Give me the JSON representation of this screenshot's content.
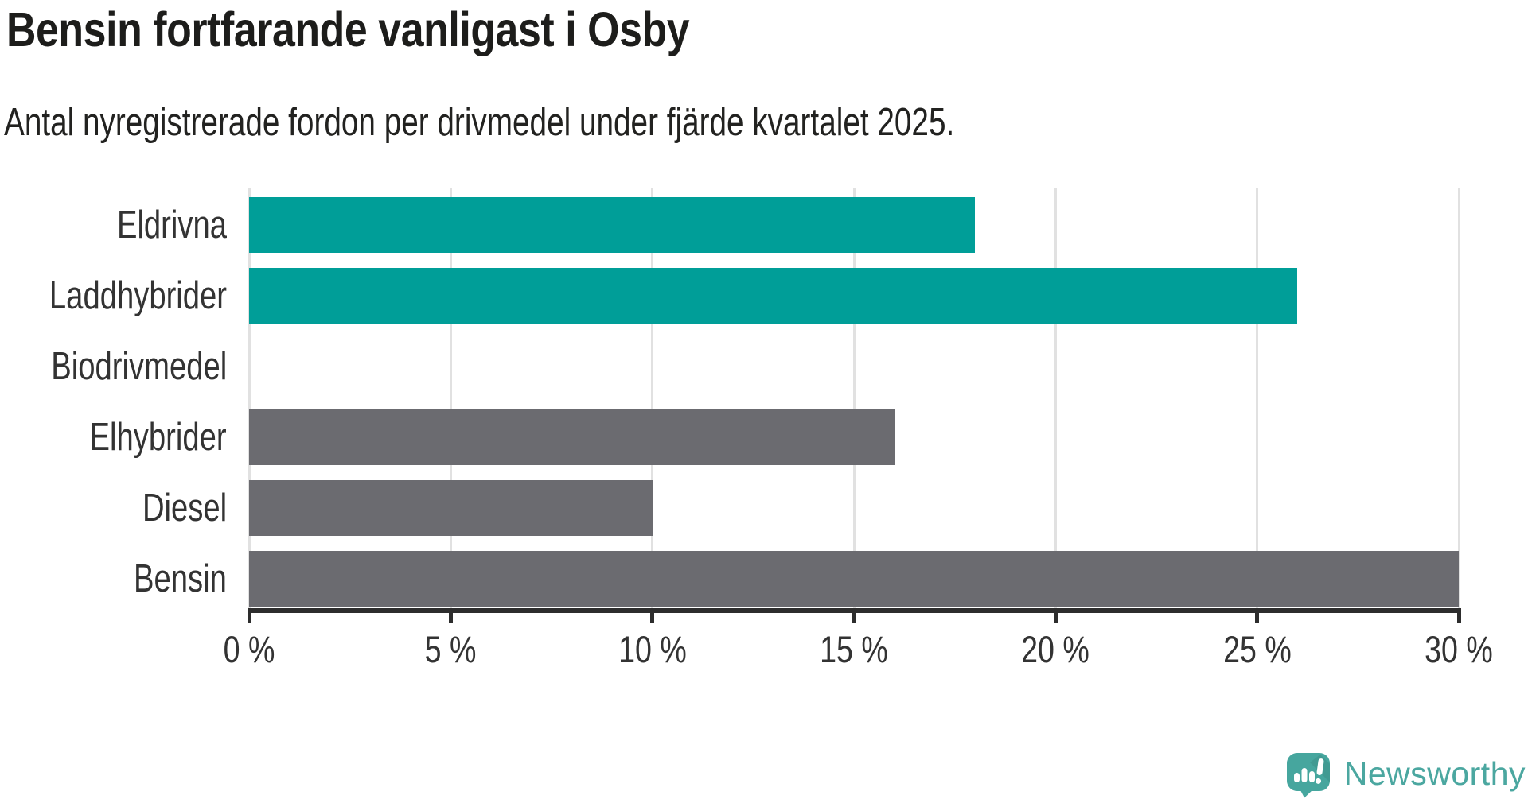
{
  "header": {
    "title": "Bensin fortfarande vanligast i Osby",
    "subtitle": "Antal nyregistrerade fordon per drivmedel under fjärde kvartalet 2025."
  },
  "chart_data": {
    "type": "bar",
    "orientation": "horizontal",
    "title": "Bensin fortfarande vanligast i Osby",
    "subtitle": "Antal nyregistrerade fordon per drivmedel under fjärde kvartalet 2025.",
    "categories": [
      "Eldrivna",
      "Laddhybrider",
      "Biodrivmedel",
      "Elhybrider",
      "Diesel",
      "Bensin"
    ],
    "values": [
      18,
      26,
      0,
      16,
      10,
      30
    ],
    "value_unit": "%",
    "series_colors": [
      "#009E98",
      "#009E98",
      "#009E98",
      "#6B6B70",
      "#6B6B70",
      "#6B6B70"
    ],
    "accent_color": "#009E98",
    "neutral_color": "#6B6B70",
    "xlim": [
      0,
      30
    ],
    "x_ticks": [
      0,
      5,
      10,
      15,
      20,
      25,
      30
    ],
    "x_tick_labels": [
      "0 %",
      "5 %",
      "10 %",
      "15 %",
      "20 %",
      "25 %",
      "30 %"
    ],
    "grid": true,
    "gridline_color": "#E1E1E1",
    "axis_color": "#2D2D2D",
    "label_color": "#333333",
    "legend": "none",
    "xlabel": "",
    "ylabel": ""
  },
  "logo": {
    "text": "Newsworthy",
    "text_color": "#4BA7A0",
    "icon": "newsworthy-speech-bubble-chart-icon",
    "icon_color": "#46A69E",
    "icon_glyph_color": "#FFFFFF"
  }
}
